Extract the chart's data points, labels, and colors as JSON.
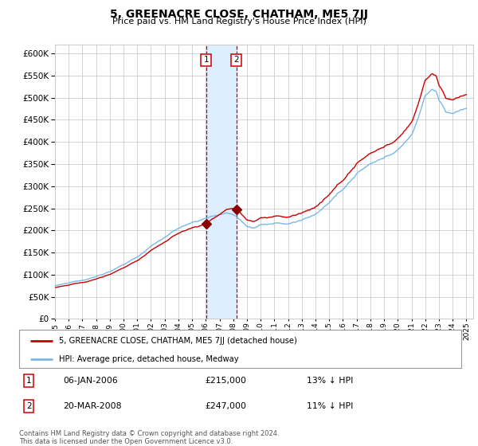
{
  "title": "5, GREENACRE CLOSE, CHATHAM, ME5 7JJ",
  "subtitle": "Price paid vs. HM Land Registry's House Price Index (HPI)",
  "ylim": [
    0,
    620000
  ],
  "yticks": [
    0,
    50000,
    100000,
    150000,
    200000,
    250000,
    300000,
    350000,
    400000,
    450000,
    500000,
    550000,
    600000
  ],
  "xlim_start": 1995.0,
  "xlim_end": 2025.5,
  "sale1_x": 2006.02,
  "sale1_y": 215000,
  "sale1_label": "1",
  "sale1_date": "06-JAN-2006",
  "sale1_price": "£215,000",
  "sale1_hpi": "13% ↓ HPI",
  "sale2_x": 2008.22,
  "sale2_y": 247000,
  "sale2_label": "2",
  "sale2_date": "20-MAR-2008",
  "sale2_price": "£247,000",
  "sale2_hpi": "11% ↓ HPI",
  "hpi_line_color": "#7ab8e8",
  "sale_line_color": "#cc0000",
  "sale_marker_color": "#880000",
  "shade_color": "#ddeeff",
  "vline_color": "#cc0000",
  "grid_color": "#cccccc",
  "bg_color": "#ffffff",
  "legend_line1": "5, GREENACRE CLOSE, CHATHAM, ME5 7JJ (detached house)",
  "legend_line2": "HPI: Average price, detached house, Medway",
  "footer": "Contains HM Land Registry data © Crown copyright and database right 2024.\nThis data is licensed under the Open Government Licence v3.0."
}
